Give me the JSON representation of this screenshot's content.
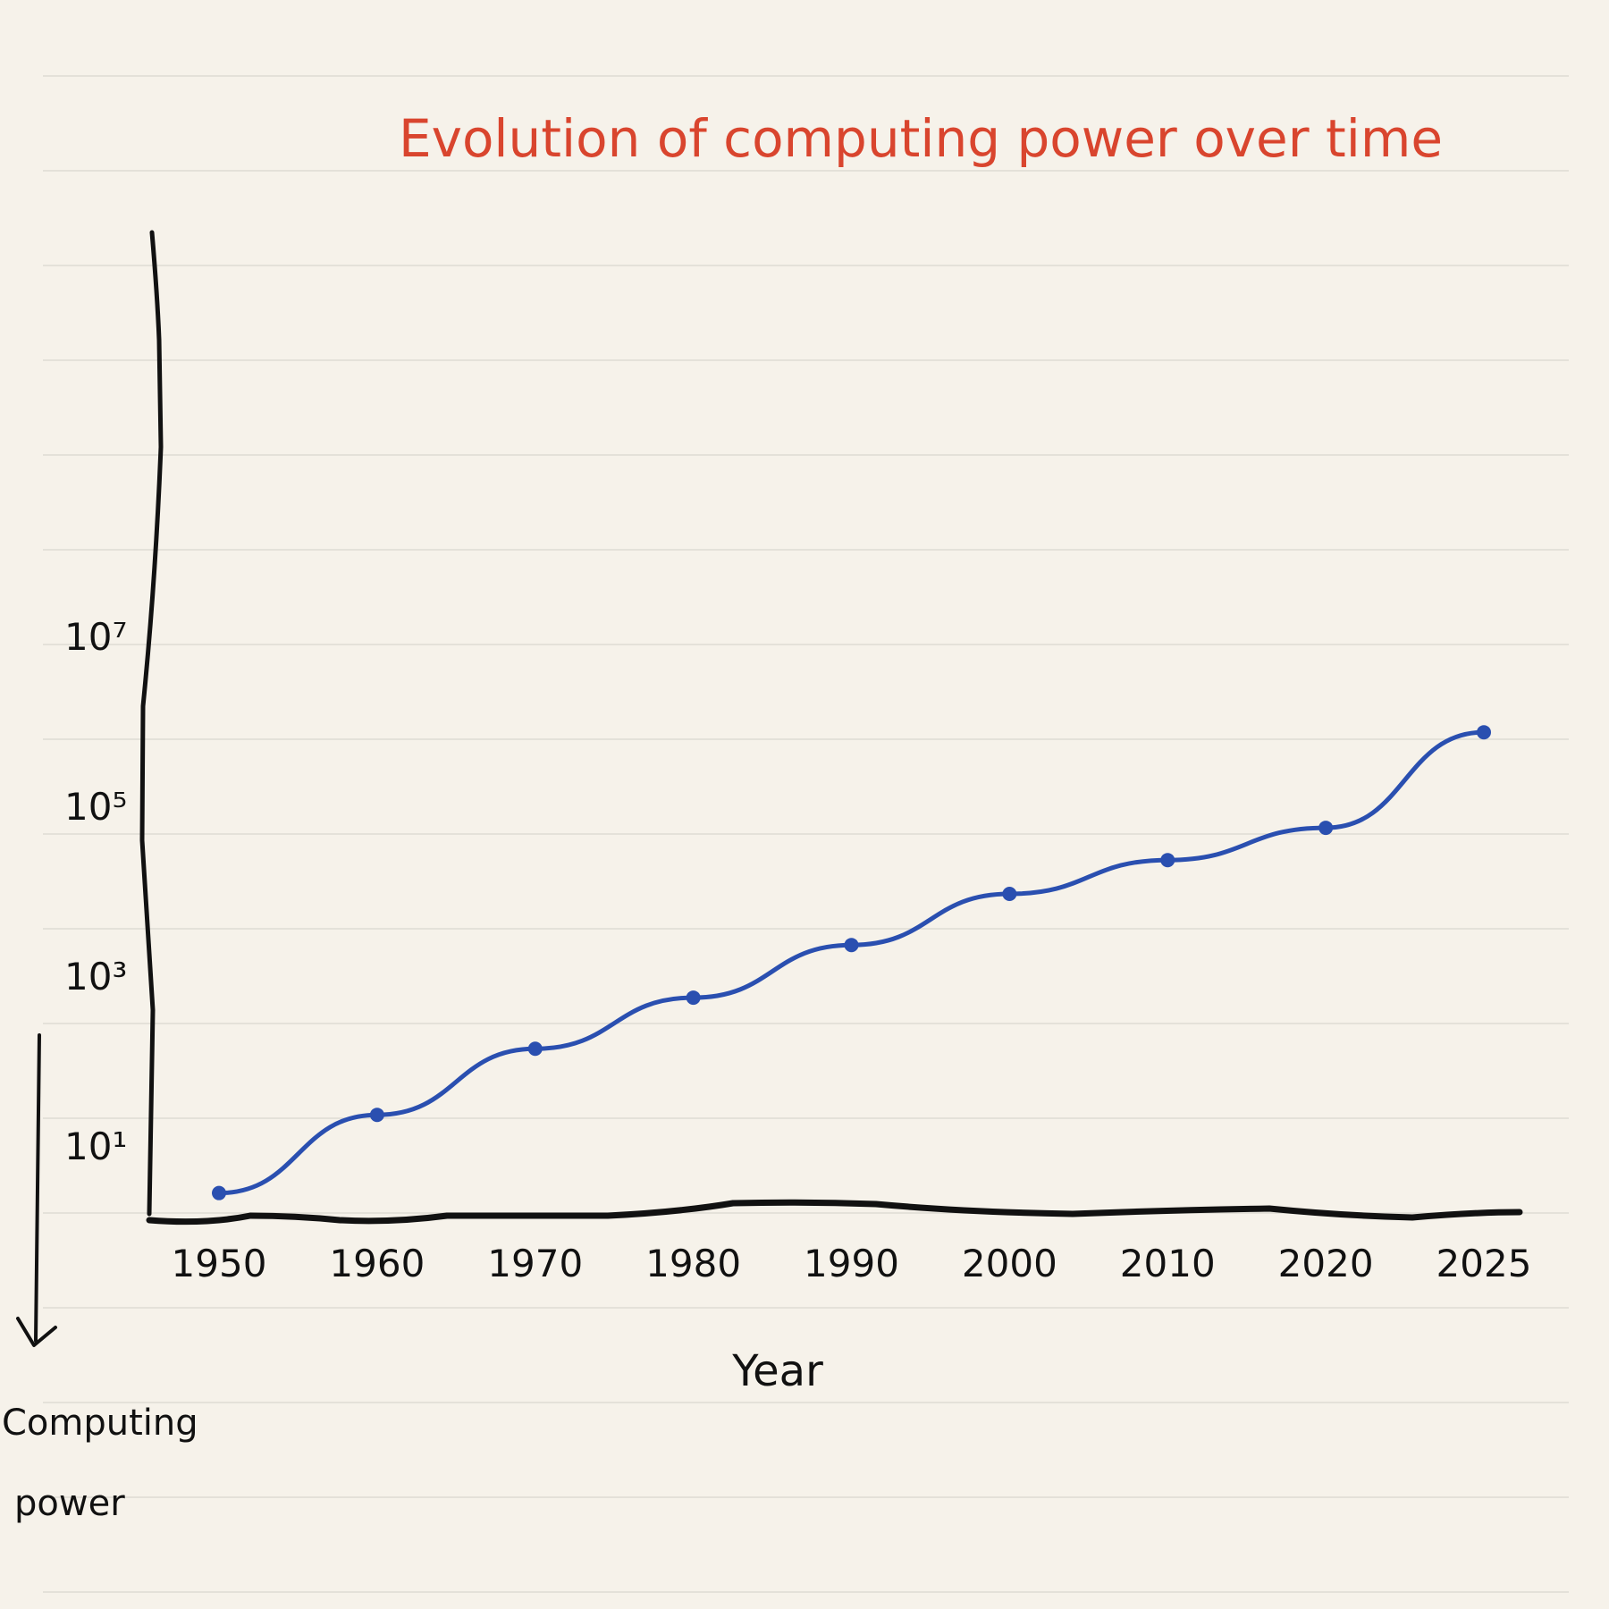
{
  "colors": {
    "background": "#f6f2ea",
    "ruled_line": "#dedbd3",
    "ink": "#111111",
    "title": "#d9452e",
    "series": "#2a4fb0"
  },
  "chart_data": {
    "type": "line",
    "title": "Evolution of computing power over time",
    "xlabel": "Year",
    "ylabel": "Computing power",
    "x_ticks": [
      "1950",
      "1960",
      "1970",
      "1980",
      "1990",
      "2000",
      "2010",
      "2020",
      "2025"
    ],
    "y_scale": "log",
    "y_ticks": [
      {
        "label": "10¹",
        "value": 10
      },
      {
        "label": "10³",
        "value": 1000
      },
      {
        "label": "10⁵",
        "value": 100000
      },
      {
        "label": "10⁷",
        "value": 10000000
      }
    ],
    "ylim": [
      1,
      100000000
    ],
    "series": [
      {
        "x": [
          1950,
          1960,
          1970,
          1980,
          1990,
          2000,
          2010,
          2020,
          2025
        ],
        "y": [
          3,
          25,
          150,
          600,
          2500,
          10000,
          25000,
          60000,
          800000
        ]
      }
    ],
    "grid": false
  }
}
